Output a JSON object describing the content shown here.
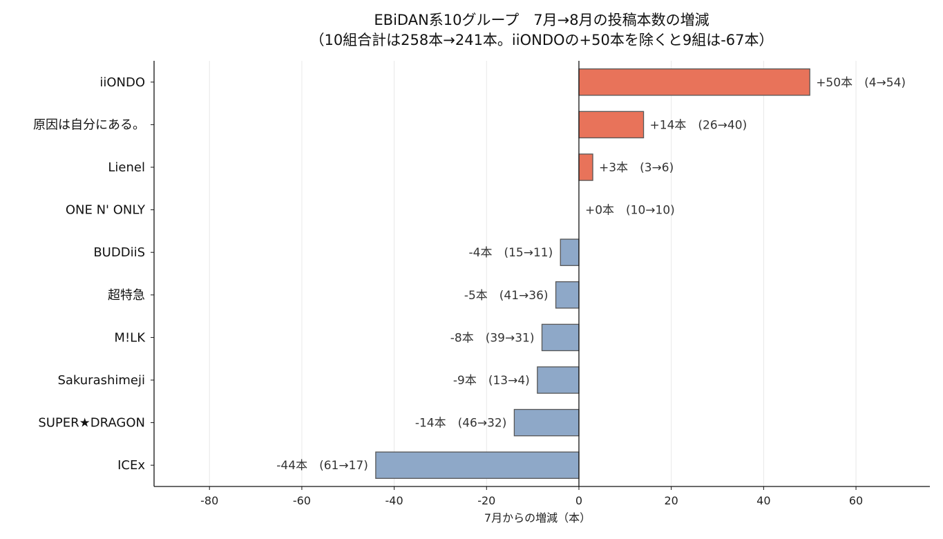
{
  "chart_data": {
    "type": "bar",
    "orientation": "horizontal",
    "title": "EBiDAN系10グループ　7月→8月の投稿本数の増減",
    "subtitle": "（10組合計は258本→241本。iiONDOの+50本を除くと9組は-67本）",
    "xlabel": "7月からの増減（本）",
    "ylabel": "",
    "xlim": [
      -92,
      76
    ],
    "xticks": [
      -80,
      -60,
      -40,
      -20,
      0,
      20,
      40,
      60
    ],
    "xtick_labels": [
      "-80",
      "-60",
      "-40",
      "-20",
      "0",
      "20",
      "40",
      "60"
    ],
    "grid": "vertical",
    "categories": [
      "iiONDO",
      "原因は自分にある。",
      "Lienel",
      "ONE N' ONLY",
      "BUDDiiS",
      "超特急",
      "M!LK",
      "Sakurashimeji",
      "SUPER★DRAGON",
      "ICEx"
    ],
    "values": [
      50,
      14,
      3,
      0,
      -4,
      -5,
      -8,
      -9,
      -14,
      -44
    ],
    "data_labels": [
      "+50本　(4→54)",
      "+14本　(26→40)",
      "+3本　(3→6)",
      "+0本　(10→10)",
      "-4本　(15→11)",
      "-5本　(41→36)",
      "-8本　(39→31)",
      "-9本　(13→4)",
      "-14本　(46→32)",
      "-44本　(61→17)"
    ],
    "colors": {
      "increase": "#e8735a",
      "decrease": "#8ea8c8",
      "bar_edge": "#555555",
      "grid": "#e8e8e8",
      "axis": "#111111"
    }
  }
}
